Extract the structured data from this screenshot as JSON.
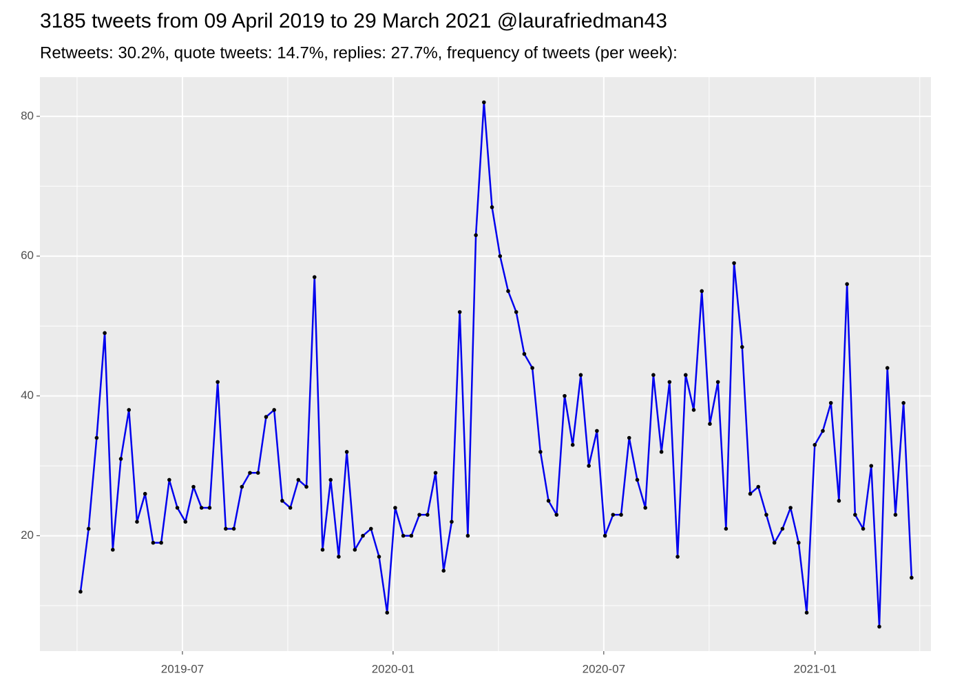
{
  "chart_data": {
    "type": "line",
    "title": "3185 tweets from 09 April 2019 to 29 March 2021 @laurafriedman43",
    "subtitle": "Retweets: 30.2%, quote tweets: 14.7%, replies: 27.7%, frequency of tweets (per week):",
    "categories": [
      null,
      null,
      null,
      null,
      null,
      null,
      null,
      null,
      null,
      null,
      null,
      null,
      null,
      null,
      null,
      null,
      null,
      null,
      null,
      null,
      null,
      null,
      null,
      null,
      null,
      null,
      null,
      null,
      null,
      null,
      null,
      null,
      null,
      null,
      null,
      null,
      null,
      null,
      null,
      null,
      null,
      null,
      null,
      null,
      null,
      null,
      null,
      null,
      null,
      null,
      null,
      null,
      null,
      null,
      null,
      null,
      null,
      null,
      null,
      null,
      null,
      null,
      null,
      null,
      null,
      null,
      null,
      null,
      null,
      null,
      null,
      null,
      null,
      null,
      null,
      null,
      null,
      null,
      null,
      null,
      null,
      null,
      null,
      null,
      null,
      null,
      null,
      null,
      null,
      null,
      null,
      null,
      null,
      null,
      null,
      null,
      null,
      null,
      null,
      null,
      null,
      null,
      null,
      null
    ],
    "values": [
      12,
      21,
      34,
      49,
      18,
      31,
      38,
      22,
      26,
      19,
      19,
      28,
      24,
      22,
      27,
      24,
      24,
      42,
      21,
      21,
      27,
      29,
      29,
      37,
      38,
      25,
      24,
      28,
      27,
      57,
      18,
      28,
      17,
      32,
      18,
      20,
      21,
      17,
      9,
      24,
      20,
      20,
      23,
      23,
      29,
      15,
      22,
      52,
      20,
      63,
      82,
      67,
      60,
      55,
      52,
      46,
      44,
      32,
      25,
      23,
      40,
      33,
      43,
      30,
      35,
      20,
      23,
      23,
      34,
      28,
      24,
      43,
      32,
      42,
      17,
      43,
      38,
      55,
      36,
      42,
      21,
      59,
      47,
      26,
      27,
      23,
      19,
      21,
      24,
      19,
      9,
      33,
      35,
      39,
      25,
      56,
      23,
      21,
      30,
      7,
      44,
      23,
      39,
      14
    ],
    "color": "#0000ee",
    "marker_color": "#000000",
    "xlim": [
      -5.03,
      105.4
    ],
    "xticks": [
      {
        "value": 12.63,
        "label": "2019-07"
      },
      {
        "value": 38.74,
        "label": "2020-01"
      },
      {
        "value": 64.85,
        "label": "2020-07"
      },
      {
        "value": 91.04,
        "label": "2021-01"
      }
    ],
    "ylim": [
      3.5,
      85.6
    ],
    "yticks": [
      20,
      40,
      60,
      80
    ],
    "grid": true
  }
}
